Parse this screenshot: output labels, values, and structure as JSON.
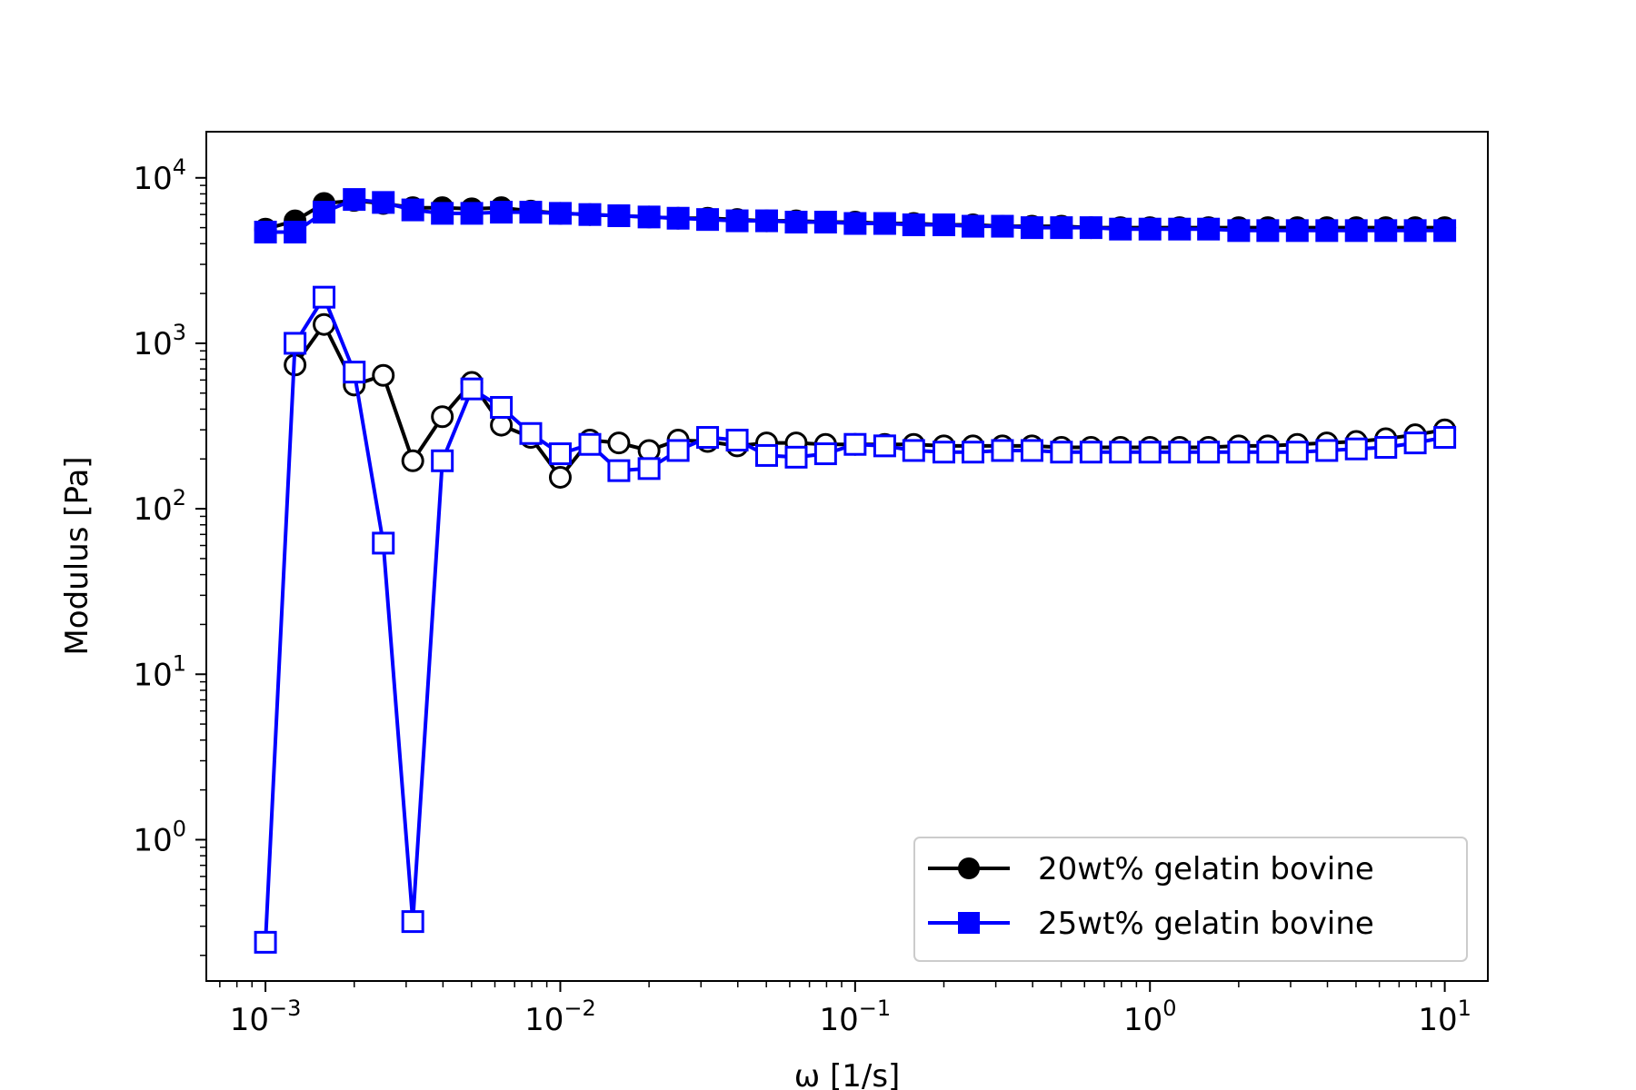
{
  "chart_data": {
    "type": "line",
    "xlabel": "ω [1/s]",
    "ylabel": "Modulus [Pa]",
    "x_scale": "log",
    "y_scale": "log",
    "xlim": [
      0.00063,
      14
    ],
    "ylim": [
      0.14,
      19000
    ],
    "grid": false,
    "legend_position": "lower-right",
    "x_ticks": [
      {
        "value": 0.001,
        "base": "10",
        "exp": "−3"
      },
      {
        "value": 0.01,
        "base": "10",
        "exp": "−2"
      },
      {
        "value": 0.1,
        "base": "10",
        "exp": "−1"
      },
      {
        "value": 1,
        "base": "10",
        "exp": "0"
      },
      {
        "value": 10,
        "base": "10",
        "exp": "1"
      }
    ],
    "y_ticks": [
      {
        "value": 1,
        "base": "10",
        "exp": "0"
      },
      {
        "value": 10,
        "base": "10",
        "exp": "1"
      },
      {
        "value": 100,
        "base": "10",
        "exp": "2"
      },
      {
        "value": 1000,
        "base": "10",
        "exp": "3"
      },
      {
        "value": 10000,
        "base": "10",
        "exp": "4"
      }
    ],
    "x": [
      0.001,
      0.00126,
      0.00158,
      0.002,
      0.00251,
      0.00316,
      0.00398,
      0.00501,
      0.00631,
      0.00794,
      0.01,
      0.0126,
      0.0158,
      0.02,
      0.0251,
      0.0316,
      0.0398,
      0.0501,
      0.0631,
      0.0794,
      0.1,
      0.126,
      0.158,
      0.2,
      0.251,
      0.316,
      0.398,
      0.501,
      0.631,
      0.794,
      1,
      1.26,
      1.58,
      2,
      2.51,
      3.16,
      3.98,
      5.01,
      6.31,
      7.94,
      10
    ],
    "series": [
      {
        "name": "20wt% gelatin bovine",
        "color": "#000000",
        "marker": "circle",
        "storage_modulus": [
          4900,
          5500,
          7000,
          7300,
          7000,
          6600,
          6600,
          6500,
          6600,
          6300,
          6100,
          6000,
          5900,
          5800,
          5700,
          5700,
          5600,
          5500,
          5500,
          5400,
          5400,
          5300,
          5300,
          5200,
          5200,
          5100,
          5100,
          5100,
          5000,
          5000,
          5000,
          5000,
          5000,
          5000,
          5000,
          5000,
          5000,
          5000,
          5000,
          5000,
          5000
        ],
        "loss_modulus": [
          null,
          740,
          1300,
          560,
          640,
          195,
          360,
          580,
          320,
          270,
          155,
          260,
          250,
          225,
          260,
          255,
          240,
          250,
          250,
          245,
          245,
          245,
          245,
          240,
          240,
          240,
          240,
          235,
          235,
          235,
          235,
          235,
          235,
          240,
          240,
          245,
          250,
          255,
          265,
          280,
          300
        ]
      },
      {
        "name": "25wt% gelatin bovine",
        "color": "#0000ff",
        "marker": "square",
        "storage_modulus": [
          4700,
          4700,
          6200,
          7400,
          7100,
          6400,
          6100,
          6100,
          6200,
          6200,
          6100,
          6000,
          5900,
          5800,
          5700,
          5600,
          5500,
          5500,
          5400,
          5400,
          5300,
          5300,
          5200,
          5200,
          5100,
          5100,
          5000,
          5000,
          5000,
          4900,
          4900,
          4900,
          4900,
          4800,
          4800,
          4800,
          4800,
          4800,
          4800,
          4800,
          4800
        ],
        "loss_modulus": [
          0.24,
          1000,
          1900,
          670,
          62,
          0.32,
          195,
          530,
          410,
          285,
          215,
          245,
          170,
          175,
          225,
          270,
          260,
          210,
          205,
          215,
          245,
          240,
          225,
          220,
          220,
          225,
          225,
          220,
          220,
          220,
          220,
          220,
          220,
          220,
          220,
          220,
          225,
          230,
          235,
          250,
          270
        ]
      }
    ]
  }
}
